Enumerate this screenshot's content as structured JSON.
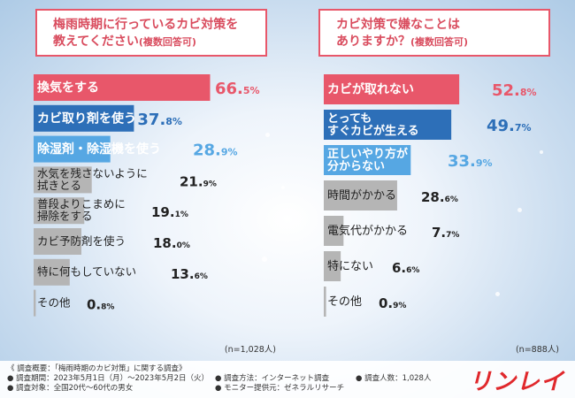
{
  "chart_data": [
    {
      "type": "bar",
      "orientation": "horizontal",
      "title": "梅雨時期に行っているカビ対策を教えてください(複数回答可)",
      "title_line1": "梅雨時期に行っているカビ対策を",
      "title_line2": "教えてください",
      "title_sub": "(複数回答可)",
      "categories": [
        "換気をする",
        "カビ取り剤を使う",
        "除湿剤・除湿機を使う",
        "水気を残さないように拭きとる",
        "普段よりこまめに掃除をする",
        "カビ予防剤を使う",
        "特に何もしていない",
        "その他"
      ],
      "category_lines": [
        [
          "換気をする"
        ],
        [
          "カビ取り剤を使う"
        ],
        [
          "除湿剤・除湿機を使う"
        ],
        [
          "水気を残さないように",
          "拭きとる"
        ],
        [
          "普段よりこまめに",
          "掃除をする"
        ],
        [
          "カビ予防剤を使う"
        ],
        [
          "特に何もしていない"
        ],
        [
          "その他"
        ]
      ],
      "values": [
        66.5,
        37.8,
        28.9,
        21.9,
        19.1,
        18.0,
        13.6,
        0.8
      ],
      "value_labels": [
        [
          "66.",
          "5%"
        ],
        [
          "37.",
          "8%"
        ],
        [
          "28.",
          "9%"
        ],
        [
          "21.",
          "9%"
        ],
        [
          "19.",
          "1%"
        ],
        [
          "18.",
          "0%"
        ],
        [
          "13.",
          "6%"
        ],
        [
          "0.",
          "8%"
        ]
      ],
      "xlim": [
        0,
        100
      ],
      "n_label": "(n=1,028人)"
    },
    {
      "type": "bar",
      "orientation": "horizontal",
      "title": "カビ対策で嫌なことはありますか？(複数回答可)",
      "title_line1": "カビ対策で嫌なことは",
      "title_line2": "ありますか？",
      "title_sub": "(複数回答可)",
      "categories": [
        "カビが取れない",
        "とってもすぐカビが生える",
        "正しいやり方が分からない",
        "時間がかかる",
        "電気代がかかる",
        "特にない",
        "その他"
      ],
      "category_lines": [
        [
          "カビが取れない"
        ],
        [
          "とっても",
          "すぐカビが生える"
        ],
        [
          "正しいやり方が",
          "分からない"
        ],
        [
          "時間がかかる"
        ],
        [
          "電気代がかかる"
        ],
        [
          "特にない"
        ],
        [
          "その他"
        ]
      ],
      "values": [
        52.8,
        49.7,
        33.9,
        28.6,
        7.7,
        6.6,
        0.9
      ],
      "value_labels": [
        [
          "52.",
          "8%"
        ],
        [
          "49.",
          "7%"
        ],
        [
          "33.",
          "9%"
        ],
        [
          "28.",
          "6%"
        ],
        [
          "7.",
          "7%"
        ],
        [
          "6.",
          "6%"
        ],
        [
          "0.",
          "9%"
        ]
      ],
      "xlim": [
        0,
        100
      ],
      "n_label": "(n=888人)"
    }
  ],
  "colors": {
    "red": "#e8576a",
    "blue": "#2d6fb8",
    "light_blue": "#56a7e3",
    "gray": "#b5b5b5",
    "title_red": "#d94c5e"
  },
  "footer": {
    "survey_title": "《 調査概要：「梅雨時期のカビ対策」に関する調査》",
    "period": "● 調査期間：2023年5月1日（月）～2023年5月2日（火）",
    "target": "● 調査対象：全国20代～60代の男女",
    "method": "● 調査方法：インターネット調査",
    "provider": "● モニター提供元：ゼネラルリサーチ",
    "count": "● 調査人数：1,028人"
  },
  "logo": "リンレイ"
}
